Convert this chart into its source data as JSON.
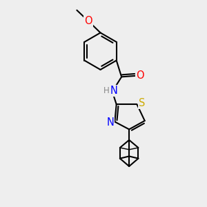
{
  "bg_color": "#eeeeee",
  "bond_color": "#000000",
  "bond_width": 1.5,
  "atom_colors": {
    "O": "#ff0000",
    "N": "#0000ff",
    "S": "#ccaa00",
    "C": "#000000",
    "H": "#888888"
  },
  "font_size": 9.5,
  "fig_size": [
    3.0,
    3.0
  ],
  "dpi": 100,
  "xlim": [
    0,
    10
  ],
  "ylim": [
    0,
    10
  ]
}
